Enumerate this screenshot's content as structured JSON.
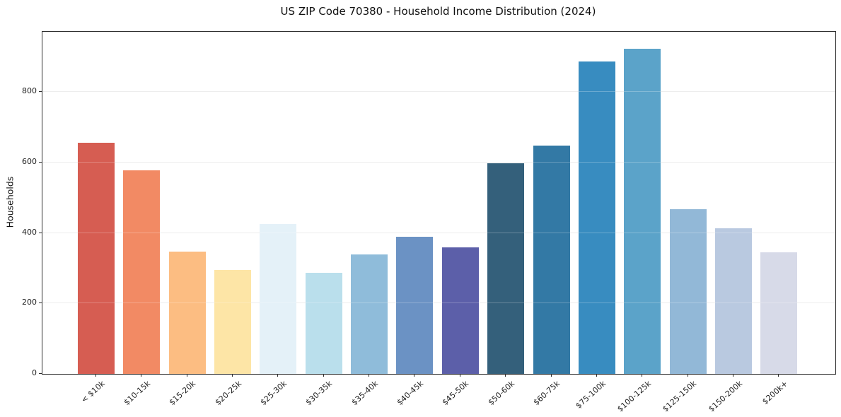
{
  "title": "US ZIP Code 70380 - Household Income Distribution (2024)",
  "chart_data": {
    "type": "bar",
    "title": "US ZIP Code 70380 - Household Income Distribution (2024)",
    "xlabel": "",
    "ylabel": "Households",
    "categories": [
      "< $10k",
      "$10-15k",
      "$15-20k",
      "$20-25k",
      "$25-30k",
      "$30-35k",
      "$35-40k",
      "$40-45k",
      "$45-50k",
      "$50-60k",
      "$60-75k",
      "$75-100k",
      "$100-125k",
      "$125-150k",
      "$150-200k",
      "$200k+"
    ],
    "values": [
      656,
      577,
      348,
      294,
      425,
      287,
      339,
      389,
      359,
      598,
      648,
      886,
      922,
      467,
      413,
      345
    ],
    "bar_colors": [
      "#d65d52",
      "#f28a64",
      "#fcbd82",
      "#fde5a6",
      "#e4f1f8",
      "#badfec",
      "#8fbcda",
      "#6b92c4",
      "#5c5fa9",
      "#34607b",
      "#3379a5",
      "#388cc0",
      "#5ba3c9",
      "#92b8d7",
      "#b9c9e0",
      "#d7dae8"
    ],
    "ylim": [
      0,
      971
    ],
    "yticks": [
      0,
      200,
      400,
      600,
      800
    ],
    "grid": "horizontal",
    "legend": "none",
    "background_color": "#ffffff",
    "gridline_color": "#e7e7e7",
    "spine_color": "#2e2e2e",
    "x_tick_rotation_deg": 45
  }
}
